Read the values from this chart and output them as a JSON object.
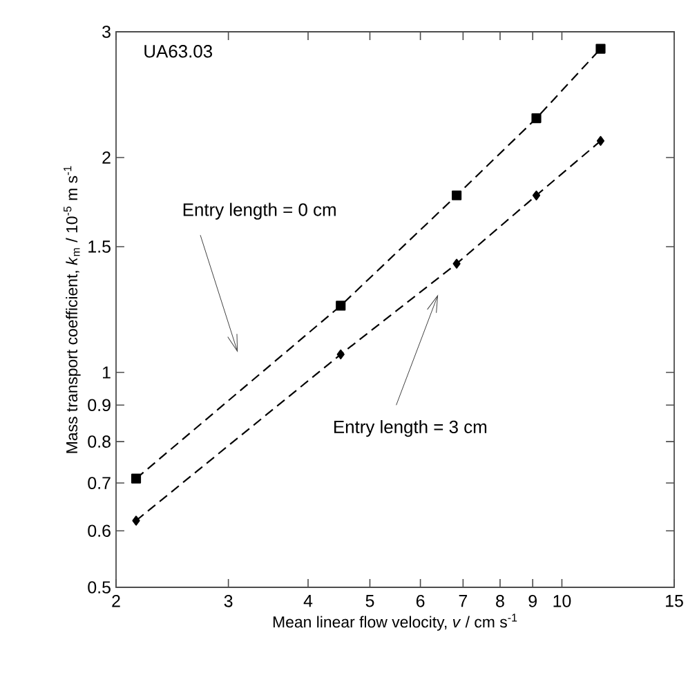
{
  "chart_data": {
    "type": "line",
    "xlabel": "Mean linear flow velocity, *v* / cm s$^{-1}$",
    "ylabel": "Mass transport coefficient, *k*$_{m}$ / 10$^{-5}$ m s$^{-1}$",
    "series": [
      {
        "marker": "square",
        "color": "#000000",
        "x": [
          2.15,
          4.5,
          6.84,
          9.12,
          11.5
        ],
        "values": [
          0.71,
          1.24,
          1.77,
          2.27,
          2.84
        ]
      },
      {
        "marker": "diamond",
        "color": "#000000",
        "x": [
          2.15,
          4.5,
          6.84,
          9.12,
          11.5
        ],
        "values": [
          0.62,
          1.06,
          1.42,
          1.77,
          2.11
        ]
      }
    ],
    "line_style": "dashed",
    "log": "xy",
    "xlim": [
      2,
      15
    ],
    "ylim": [
      0.5,
      3
    ],
    "xticks": [
      2,
      3,
      4,
      5,
      6,
      7,
      8,
      9,
      10,
      15
    ],
    "yticks": [
      0.5,
      0.6,
      0.7,
      0.8,
      0.9,
      1,
      1.5,
      2,
      3
    ],
    "grid": false,
    "annotations": [
      "UA63.03",
      "Entry length = 0 cm",
      "Entry length = 3 cm"
    ]
  }
}
